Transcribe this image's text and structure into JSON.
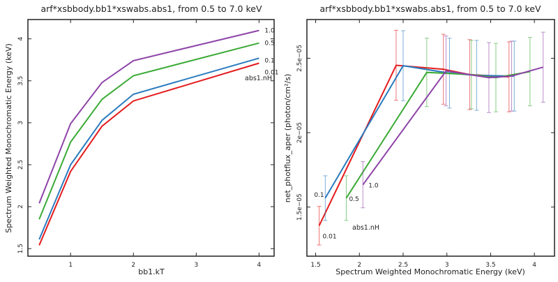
{
  "chart_data": [
    {
      "type": "line",
      "title": "arf*xsbbody.bb1*xswabs.abs1, from 0.5 to 7.0 keV",
      "xlabel": "bb1.kT",
      "ylabel": "Spectrum Weighted Monochromatic Energy (keV)",
      "xlim": [
        0.32,
        4.24
      ],
      "ylim": [
        1.41,
        4.23
      ],
      "xticks": [
        1,
        2,
        3,
        4
      ],
      "xtick_labels": [
        "1",
        "2",
        "3",
        "4"
      ],
      "yticks": [
        1.5,
        2,
        2.5,
        3,
        3.5,
        4
      ],
      "ytick_labels": [
        "1.5",
        "2",
        "2.5",
        "3",
        "3.5",
        "4"
      ],
      "legend_title": "abs1.nH",
      "grid": false,
      "series": [
        {
          "name": "1.0",
          "color": "#8e44a8",
          "x": [
            0.5,
            1,
            1.5,
            2,
            4
          ],
          "y": [
            2.04,
            2.99,
            3.48,
            3.74,
            4.1
          ]
        },
        {
          "name": "0.5",
          "color": "#3aaa35",
          "x": [
            0.5,
            1,
            1.5,
            2,
            4
          ],
          "y": [
            1.85,
            2.77,
            3.28,
            3.56,
            3.95
          ]
        },
        {
          "name": "0.1",
          "color": "#2a7bbf",
          "x": [
            0.5,
            1,
            1.5,
            2,
            4
          ],
          "y": [
            1.61,
            2.5,
            3.03,
            3.34,
            3.77
          ]
        },
        {
          "name": "0.01",
          "color": "#e41a1c",
          "x": [
            0.5,
            1,
            1.5,
            2,
            4
          ],
          "y": [
            1.54,
            2.42,
            2.96,
            3.26,
            3.71
          ]
        }
      ]
    },
    {
      "type": "line",
      "title": "arf*xsbbody.bb1*xswabs.abs1, from 0.5 to 7.0 keV",
      "xlabel": "Spectrum Weighted Monochromatic Energy (keV)",
      "ylabel": "net_photflux_aper (photon/cm²/s)",
      "xlim": [
        1.4,
        4.23
      ],
      "ylim": [
        1.17e-05,
        2.76e-05
      ],
      "xticks": [
        1.5,
        2,
        2.5,
        3,
        3.5,
        4
      ],
      "xtick_labels": [
        "1.5",
        "2",
        "2.5",
        "3",
        "3.5",
        "4"
      ],
      "yticks": [
        1.5e-05,
        2e-05,
        2.5e-05
      ],
      "ytick_labels": [
        "1.5e−05",
        "2e−05",
        "2.5e−05"
      ],
      "legend_title": "abs1.nH",
      "grid": false,
      "error_bars": true,
      "series": [
        {
          "name": "0.01",
          "color": "#e41a1c",
          "x": [
            1.54,
            2.42,
            2.96,
            3.26,
            3.71
          ],
          "y": [
            1.375e-05,
            2.453e-05,
            2.426e-05,
            2.39e-05,
            2.375e-05
          ],
          "yerr": [
            1.3e-06,
            2.35e-06,
            2.35e-06,
            2.35e-06,
            2.35e-06
          ]
        },
        {
          "name": "0.1",
          "color": "#2a7bbf",
          "x": [
            1.61,
            2.5,
            3.03,
            3.34,
            3.77
          ],
          "y": [
            1.56e-05,
            2.45e-05,
            2.4e-05,
            2.385e-05,
            2.38e-05
          ],
          "yerr": [
            1.5e-06,
            2.35e-06,
            2.35e-06,
            2.35e-06,
            2.35e-06
          ]
        },
        {
          "name": "0.5",
          "color": "#3aaa35",
          "x": [
            1.85,
            2.77,
            3.28,
            3.56,
            3.95
          ],
          "y": [
            1.56e-05,
            2.405e-05,
            2.39e-05,
            2.37e-05,
            2.41e-05
          ],
          "yerr": [
            1.5e-06,
            2.3e-06,
            2.3e-06,
            2.3e-06,
            2.3e-06
          ]
        },
        {
          "name": "1.0",
          "color": "#8e44a8",
          "x": [
            2.04,
            2.99,
            3.48,
            3.74,
            4.1
          ],
          "y": [
            1.65e-05,
            2.415e-05,
            2.37e-05,
            2.38e-05,
            2.44e-05
          ],
          "yerr": [
            1.55e-06,
            2.35e-06,
            2.35e-06,
            2.35e-06,
            2.35e-06
          ]
        }
      ]
    }
  ]
}
